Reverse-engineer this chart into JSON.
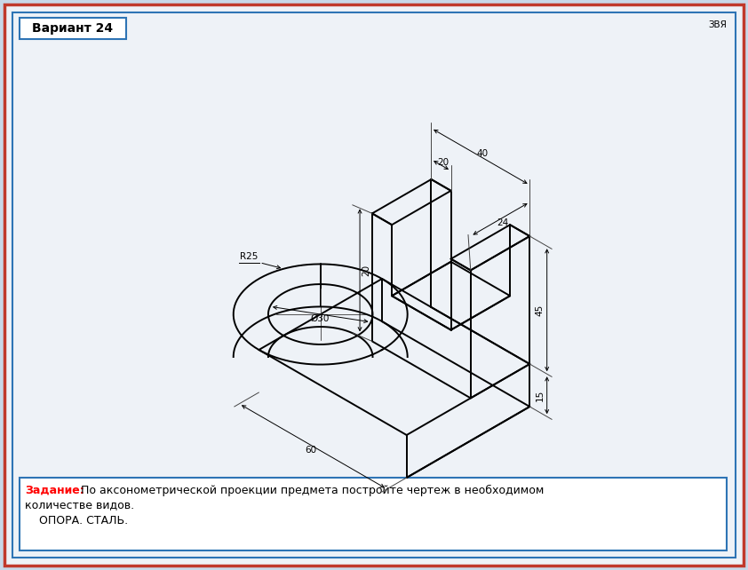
{
  "bg_color": "#c8d8e8",
  "drawing_bg": "#eef2f7",
  "border_outer": "#c0392b",
  "border_inner": "#2e74b5",
  "title_text": "Вариант 24",
  "corner_text": "ЗВЯ",
  "bottom_bold": "Задание:",
  "bottom_normal": " По аксонометрической проекции предмета постройте чертеж в необходимом",
  "bottom_line2": "количестве видов.",
  "bottom_line3": "    ОПОРА. СТАЛЬ.",
  "dim_20a": "20",
  "dim_40": "40",
  "dim_24": "24",
  "dim_20b": "20",
  "dim_45": "45",
  "dim_15": "15",
  "dim_60": "60",
  "dim_r25": "R25",
  "dim_d30": "Ø30",
  "lc": "#000000",
  "lw": 1.4,
  "tlw": 0.7,
  "scale": 3.2,
  "ox": 430,
  "oy": 280
}
